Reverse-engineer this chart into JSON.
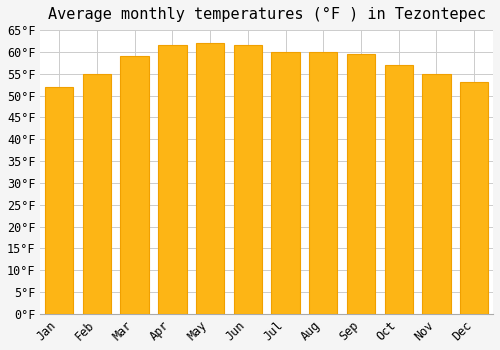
{
  "title": "Average monthly temperatures (°F ) in Tezontepec",
  "months": [
    "Jan",
    "Feb",
    "Mar",
    "Apr",
    "May",
    "Jun",
    "Jul",
    "Aug",
    "Sep",
    "Oct",
    "Nov",
    "Dec"
  ],
  "values": [
    52,
    55,
    59,
    61.5,
    62,
    61.5,
    60,
    60,
    59.5,
    57,
    55,
    53
  ],
  "bar_color": "#FDB515",
  "bar_edge_color": "#F0A000",
  "background_color": "#F5F5F5",
  "plot_bg_color": "#FFFFFF",
  "ylim": [
    0,
    65
  ],
  "ytick_step": 5,
  "title_fontsize": 11,
  "tick_fontsize": 8.5,
  "grid_color": "#CCCCCC"
}
